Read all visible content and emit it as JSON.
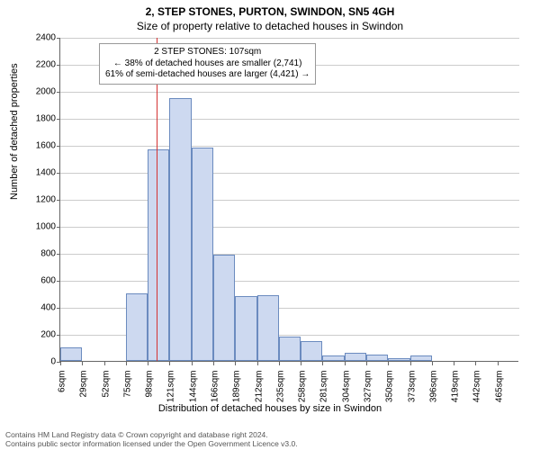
{
  "title_main": "2, STEP STONES, PURTON, SWINDON, SN5 4GH",
  "title_sub": "Size of property relative to detached houses in Swindon",
  "y_axis_label": "Number of detached properties",
  "x_axis_label": "Distribution of detached houses by size in Swindon",
  "chart": {
    "type": "histogram",
    "ylim": [
      0,
      2400
    ],
    "ytick_step": 200,
    "bar_fill": "#cdd9f0",
    "bar_stroke": "#6b8bbf",
    "grid_color": "#cccccc",
    "background": "#ffffff",
    "ref_line_x": 107,
    "ref_line_color": "#d43333",
    "x_categories": [
      "6sqm",
      "29sqm",
      "52sqm",
      "75sqm",
      "98sqm",
      "121sqm",
      "144sqm",
      "166sqm",
      "189sqm",
      "212sqm",
      "235sqm",
      "258sqm",
      "281sqm",
      "304sqm",
      "327sqm",
      "350sqm",
      "373sqm",
      "396sqm",
      "419sqm",
      "442sqm",
      "465sqm"
    ],
    "x_numeric": [
      6,
      29,
      52,
      75,
      98,
      121,
      144,
      166,
      189,
      212,
      235,
      258,
      281,
      304,
      327,
      350,
      373,
      396,
      419,
      442,
      465
    ],
    "bar_values": [
      100,
      0,
      0,
      500,
      1570,
      1950,
      1580,
      790,
      480,
      490,
      180,
      150,
      40,
      60,
      50,
      20,
      40,
      0,
      0,
      0,
      0
    ]
  },
  "annotation": {
    "line1": "2 STEP STONES: 107sqm",
    "line2": "← 38% of detached houses are smaller (2,741)",
    "line3": "61% of semi-detached houses are larger (4,421) →"
  },
  "footer_line1": "Contains HM Land Registry data © Crown copyright and database right 2024.",
  "footer_line2": "Contains public sector information licensed under the Open Government Licence v3.0."
}
